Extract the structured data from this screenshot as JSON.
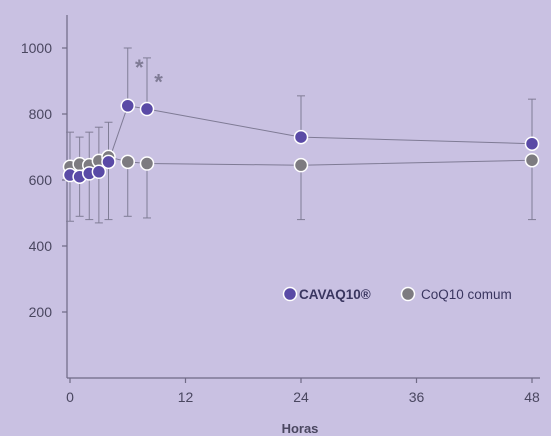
{
  "chart_data": {
    "type": "line",
    "xlabel": "Horas",
    "ylabel": "",
    "xlim": [
      -0.3,
      48.8
    ],
    "ylim": [
      0,
      1100
    ],
    "xticks": [
      0,
      12,
      24,
      36,
      48
    ],
    "yticks": [
      200,
      400,
      600,
      800,
      1000
    ],
    "grid": false,
    "legend_position": "bottom-right",
    "colors": {
      "background": "#c9c1e2",
      "axis": "#6f6a86",
      "text": "#4a4760",
      "error_bar": "#807d96",
      "connector": "#7f7b95",
      "significance": "#7f7b95"
    },
    "series": [
      {
        "name": "CAVAQ10®",
        "color": "#5a4aa6",
        "x": [
          0,
          1,
          2,
          3,
          4,
          6,
          8,
          24,
          48
        ],
        "y": [
          615,
          610,
          620,
          625,
          655,
          825,
          815,
          730,
          710
        ],
        "error_upper": [
          null,
          null,
          null,
          null,
          null,
          1000,
          970,
          855,
          845
        ],
        "error_lower": [
          null,
          null,
          null,
          null,
          null,
          null,
          null,
          null,
          null
        ]
      },
      {
        "name": "CoQ10 comum",
        "color": "#7d7b80",
        "x": [
          0,
          1,
          2,
          3,
          4,
          6,
          8,
          24,
          48
        ],
        "y": [
          640,
          648,
          645,
          658,
          670,
          655,
          650,
          645,
          660
        ],
        "error_upper": [
          745,
          730,
          745,
          760,
          775,
          null,
          null,
          null,
          null
        ],
        "error_lower": [
          475,
          490,
          480,
          470,
          480,
          490,
          485,
          480,
          480
        ]
      }
    ],
    "annotations": [
      {
        "text": "*",
        "x": 7.2,
        "y": 955
      },
      {
        "text": "*",
        "x": 9.2,
        "y": 910
      }
    ]
  }
}
